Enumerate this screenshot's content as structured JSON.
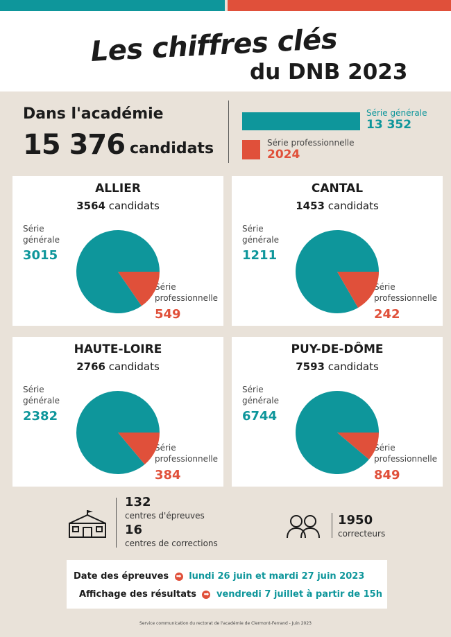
{
  "colors": {
    "teal": "#0e969b",
    "red": "#e0503a",
    "background": "#e9e2d9"
  },
  "header": {
    "title": "Les chiffres clés",
    "subtitle": "du DNB 2023"
  },
  "academie": {
    "label": "Dans l'académie",
    "total": "15 376",
    "unit": "candidats",
    "generale_label": "Série générale",
    "generale_value": "13 352",
    "pro_label": "Série professionnelle",
    "pro_value": "2024"
  },
  "chart_data": [
    {
      "type": "bar",
      "orientation": "horizontal",
      "categories": [
        "Série générale",
        "Série professionnelle"
      ],
      "values": [
        13352,
        2024
      ]
    },
    {
      "type": "pie",
      "title": "ALLIER",
      "total": 3564,
      "categories": [
        "Série générale",
        "Série professionnelle"
      ],
      "values": [
        3015,
        549
      ]
    },
    {
      "type": "pie",
      "title": "CANTAL",
      "total": 1453,
      "categories": [
        "Série générale",
        "Série professionnelle"
      ],
      "values": [
        1211,
        242
      ]
    },
    {
      "type": "pie",
      "title": "HAUTE-LOIRE",
      "total": 2766,
      "categories": [
        "Série générale",
        "Série professionnelle"
      ],
      "values": [
        2382,
        384
      ]
    },
    {
      "type": "pie",
      "title": "PUY-DE-DÔME",
      "total": 7593,
      "categories": [
        "Série générale",
        "Série professionnelle"
      ],
      "values": [
        6744,
        849
      ]
    }
  ],
  "departments": [
    {
      "name": "ALLIER",
      "total": "3564",
      "unit": "candidats",
      "gen_label": "Série générale",
      "gen": "3015",
      "pro_label": "Série professionnelle",
      "pro": "549"
    },
    {
      "name": "CANTAL",
      "total": "1453",
      "unit": "candidats",
      "gen_label": "Série générale",
      "gen": "1211",
      "pro_label": "Série professionnelle",
      "pro": "242"
    },
    {
      "name": "HAUTE-LOIRE",
      "total": "2766",
      "unit": "candidats",
      "gen_label": "Série générale",
      "gen": "2382",
      "pro_label": "Série professionnelle",
      "pro": "384"
    },
    {
      "name": "PUY-DE-DÔME",
      "total": "7593",
      "unit": "candidats",
      "gen_label": "Série générale",
      "gen": "6744",
      "pro_label": "Série professionnelle",
      "pro": "849"
    }
  ],
  "stats": {
    "centres_epreuves_num": "132",
    "centres_epreuves_label": "centres d'épreuves",
    "centres_corrections_num": "16",
    "centres_corrections_label": "centres de corrections",
    "correcteurs_num": "1950",
    "correcteurs_label": "correcteurs",
    "icons": [
      "school-building-icon",
      "people-icon"
    ]
  },
  "dates": {
    "epreuves_label": "Date des épreuves",
    "epreuves_value": "lundi 26 juin et mardi 27 juin 2023",
    "resultats_label": "Affichage des résultats",
    "resultats_value": "vendredi 7 juillet à partir de 15h",
    "arrow_glyph": "➡"
  },
  "footer": "Service communication du rectorat de l'académie de Clermont-Ferrand - Juin 2023"
}
